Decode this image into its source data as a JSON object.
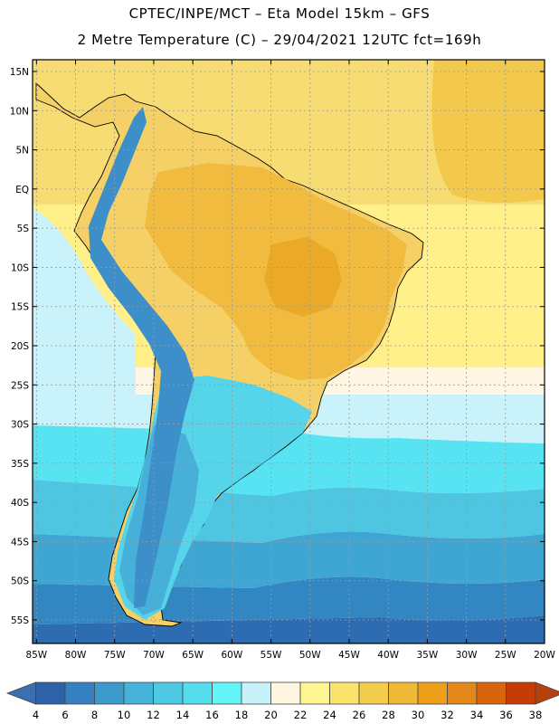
{
  "title": {
    "line1": "CPTEC/INPE/MCT –  Eta Model 15km – GFS",
    "line2": "2 Metre Temperature (C) – 29/04/2021 12UTC fct=169h"
  },
  "axes": {
    "lat_labels": [
      "15N",
      "10N",
      "5N",
      "EQ",
      "5S",
      "10S",
      "15S",
      "20S",
      "25S",
      "30S",
      "35S",
      "40S",
      "45S",
      "50S",
      "55S"
    ],
    "lat_values": [
      15,
      10,
      5,
      0,
      -5,
      -10,
      -15,
      -20,
      -25,
      -30,
      -35,
      -40,
      -45,
      -50,
      -55
    ],
    "lon_labels": [
      "85W",
      "80W",
      "75W",
      "70W",
      "65W",
      "60W",
      "55W",
      "50W",
      "45W",
      "40W",
      "35W",
      "30W",
      "25W",
      "20W"
    ],
    "lon_values": [
      -85,
      -80,
      -75,
      -70,
      -65,
      -60,
      -55,
      -50,
      -45,
      -40,
      -35,
      -30,
      -25,
      -20
    ],
    "lon_range": [
      -85.5,
      -20
    ],
    "lat_range": [
      -58,
      16.5
    ]
  },
  "colorbar": {
    "labels": [
      "4",
      "6",
      "8",
      "10",
      "12",
      "14",
      "16",
      "18",
      "20",
      "22",
      "24",
      "26",
      "28",
      "30",
      "32",
      "34",
      "36",
      "38"
    ],
    "below_color": "#3a6fb0",
    "above_color": "#b8400c",
    "colors": [
      "#2e62a8",
      "#3580c0",
      "#3c99cc",
      "#46b2d9",
      "#4ec9e3",
      "#55dced",
      "#63f4f7",
      "#c7f2f9",
      "#fff6df",
      "#fff590",
      "#f9e36a",
      "#f4cd50",
      "#efb837",
      "#ed9f1c",
      "#e3871a",
      "#d8650c",
      "#c43c06"
    ]
  },
  "map": {
    "ocean_colors": {
      "north_tropical": "#f6dc72",
      "north_deep": "#f2c94c",
      "subtropical": "#fff08a",
      "transition": "#fff7e4",
      "cool": "#c9f2fa",
      "mid": "#57e3f2",
      "south1": "#4ec6e2",
      "south2": "#3fa6d4",
      "south3": "#3286c2",
      "south4": "#2e6cb1"
    },
    "land_colors": {
      "hot_core": "#eaa927",
      "warm": "#f0bb3f",
      "mild": "#f5d067",
      "andes_cold": "#3c8fc9",
      "patagonia": "#46b0d9",
      "south_land": "#55d4ea"
    }
  }
}
